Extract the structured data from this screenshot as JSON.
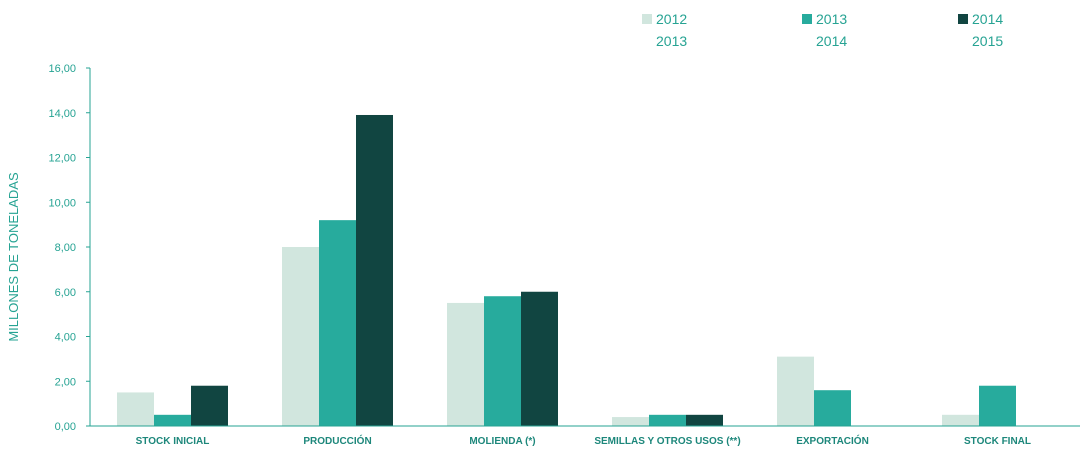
{
  "colors": {
    "series_2012_2013": "#d1e6de",
    "series_2013_2014": "#27ab9d",
    "series_2014_2015": "#114541",
    "text": "#26a393",
    "category_text": "#1d877b",
    "axis": "#26a393"
  },
  "chart_data": {
    "type": "bar",
    "title": "",
    "xlabel": "",
    "ylabel": "MILLONES DE TONELADAS",
    "ylim": [
      0,
      16
    ],
    "yticks": [
      0,
      2,
      4,
      6,
      8,
      10,
      12,
      14,
      16
    ],
    "ytick_labels": [
      "0,00",
      "2,00",
      "4,00",
      "6,00",
      "8,00",
      "10,00",
      "12,00",
      "14,00",
      "16,00"
    ],
    "grid": false,
    "legend_position": "top-right",
    "categories": [
      "STOCK INICIAL",
      "PRODUCCIÓN",
      "MOLIENDA (*)",
      "SEMILLAS Y OTROS USOS (**)",
      "EXPORTACIÓN",
      "STOCK FINAL"
    ],
    "series": [
      {
        "name_line1": "2012",
        "name_line2": "2013",
        "color": "#d1e6de",
        "values": [
          1.5,
          8.0,
          5.5,
          0.4,
          3.1,
          0.5
        ]
      },
      {
        "name_line1": "2013",
        "name_line2": "2014",
        "color": "#27ab9d",
        "values": [
          0.5,
          9.2,
          5.8,
          0.5,
          1.6,
          1.8
        ]
      },
      {
        "name_line1": "2014",
        "name_line2": "2015",
        "color": "#114541",
        "values": [
          1.8,
          13.9,
          6.0,
          0.5,
          null,
          null
        ]
      }
    ]
  }
}
